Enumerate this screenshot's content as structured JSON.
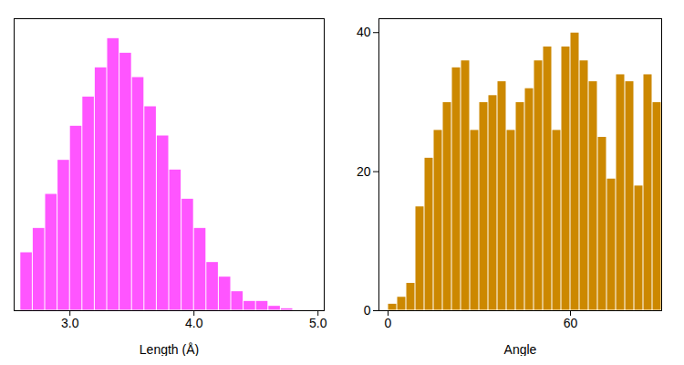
{
  "chart_data": [
    {
      "type": "histogram",
      "x_label": "Length (Å)",
      "bins": [
        2.6,
        2.7,
        2.8,
        2.9,
        3.0,
        3.1,
        3.2,
        3.3,
        3.4,
        3.5,
        3.6,
        3.7,
        3.8,
        3.9,
        4.0,
        4.1,
        4.2,
        4.3,
        4.4,
        4.5,
        4.6,
        4.7,
        4.8
      ],
      "values": [
        12,
        17,
        24,
        31,
        38,
        44,
        50,
        56,
        53,
        48,
        42,
        36,
        29,
        23,
        17,
        10,
        7,
        4,
        2,
        2,
        1,
        0.5
      ],
      "color": "#FF55FF",
      "xlim": [
        2.55,
        5.05
      ],
      "ylim": [
        0,
        60
      ],
      "xticks": [
        3,
        4,
        5
      ],
      "tick_labels": "x"
    },
    {
      "type": "histogram",
      "x_label": "Angle",
      "bins": [
        0,
        3,
        6,
        9,
        12,
        15,
        18,
        21,
        24,
        27,
        30,
        33,
        36,
        39,
        42,
        45,
        48,
        51,
        54,
        57,
        60,
        63,
        66,
        69,
        72,
        75,
        78,
        81,
        84,
        87,
        90
      ],
      "values": [
        1,
        2,
        4,
        15,
        22,
        26,
        30,
        35,
        36,
        26,
        30,
        31,
        33,
        26,
        30,
        32,
        36,
        38,
        26,
        38,
        40,
        36,
        33,
        25,
        19,
        34,
        33,
        18,
        34,
        30
      ],
      "color": "#CC8800",
      "xlim": [
        -3,
        90
      ],
      "ylim": [
        0,
        42
      ],
      "xticks": [
        0,
        60
      ],
      "yticks": [
        0,
        20,
        40
      ]
    }
  ]
}
